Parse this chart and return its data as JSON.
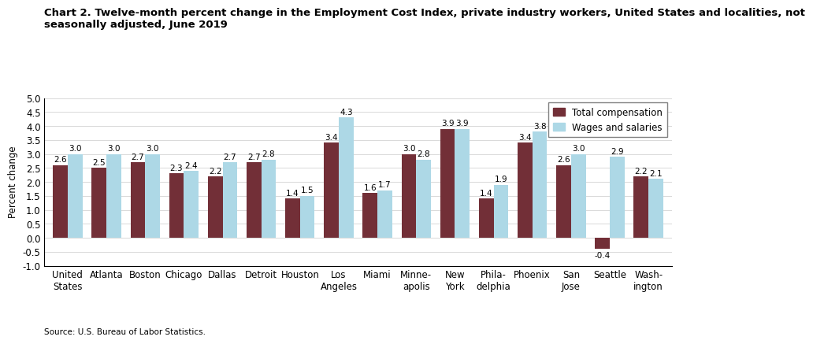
{
  "title_line1": "Chart 2. Twelve-month percent change in the Employment Cost Index, private industry workers, United States and localities, not",
  "title_line2": "seasonally adjusted, June 2019",
  "ylabel": "Percent change",
  "source": "Source: U.S. Bureau of Labor Statistics.",
  "categories": [
    "United\nStates",
    "Atlanta",
    "Boston",
    "Chicago",
    "Dallas",
    "Detroit",
    "Houston",
    "Los\nAngeles",
    "Miami",
    "Minne-\napolis",
    "New\nYork",
    "Phila-\ndelphia",
    "Phoenix",
    "San\nJose",
    "Seattle",
    "Wash-\nington"
  ],
  "total_compensation": [
    2.6,
    2.5,
    2.7,
    2.3,
    2.2,
    2.7,
    1.4,
    3.4,
    1.6,
    3.0,
    3.9,
    1.4,
    3.4,
    2.6,
    -0.4,
    2.2
  ],
  "wages_and_salaries": [
    3.0,
    3.0,
    3.0,
    2.4,
    2.7,
    2.8,
    1.5,
    4.3,
    1.7,
    2.8,
    3.9,
    1.9,
    3.8,
    3.0,
    2.9,
    2.1
  ],
  "color_total": "#722F37",
  "color_wages": "#ADD8E6",
  "ylim": [
    -1.0,
    5.0
  ],
  "yticks": [
    -1.0,
    -0.5,
    0.0,
    0.5,
    1.0,
    1.5,
    2.0,
    2.5,
    3.0,
    3.5,
    4.0,
    4.5,
    5.0
  ],
  "legend_labels": [
    "Total compensation",
    "Wages and salaries"
  ],
  "bar_width": 0.38,
  "label_fontsize": 7.5,
  "tick_fontsize": 8.5,
  "title_fontsize": 9.5,
  "ylabel_fontsize": 8.5
}
